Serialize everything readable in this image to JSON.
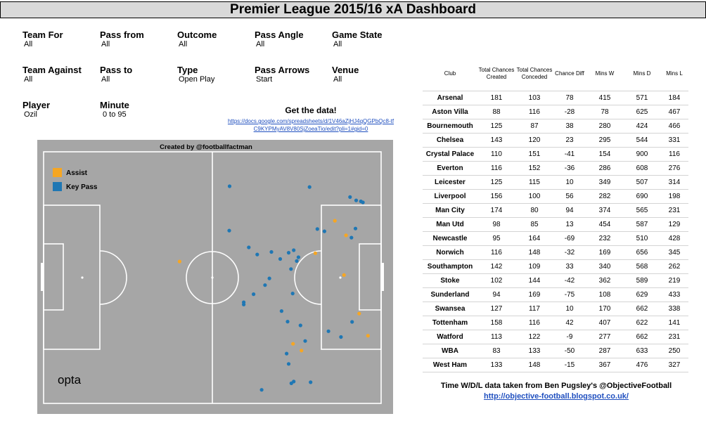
{
  "title": "Premier League 2015/16 xA Dashboard",
  "filters": [
    {
      "label": "Team For",
      "value": "All"
    },
    {
      "label": "Pass from",
      "value": "All"
    },
    {
      "label": "Outcome",
      "value": "All"
    },
    {
      "label": "Pass Angle",
      "value": "All"
    },
    {
      "label": "Game State",
      "value": "All"
    },
    {
      "label": "Team Against",
      "value": "All"
    },
    {
      "label": "Pass to",
      "value": "All"
    },
    {
      "label": "Type",
      "value": "Open Play"
    },
    {
      "label": "Pass Arrows",
      "value": "Start"
    },
    {
      "label": "Venue",
      "value": "All"
    },
    {
      "label": "Player",
      "value": "Ozil"
    },
    {
      "label": "Minute",
      "value": "0 to 95"
    }
  ],
  "getdata": {
    "heading": "Get the data!",
    "link": "https://docs.google.com/spreadsheets/d/1V46aZjHJ4qQGPbQc8-tfC9KYPMyAV8V80SjZoeaTio/edit?pli=1#gid=0"
  },
  "pitch": {
    "caption": "Created by @footballfactman",
    "brand": "opta",
    "legend": [
      {
        "label": "Assist",
        "color": "#f6a623"
      },
      {
        "label": "Key Pass",
        "color": "#1f77b4"
      }
    ],
    "colors": {
      "background": "#a6a6a6",
      "lines": "#ffffff"
    }
  },
  "chart_data": {
    "type": "scatter",
    "title": "Created by @footballfactman",
    "x_axis": "pitch length (0-100, left to right)",
    "y_axis": "pitch width (0-100, top to bottom)",
    "xlim": [
      0,
      100
    ],
    "ylim": [
      0,
      100
    ],
    "series": [
      {
        "name": "Assist",
        "color": "#f6a623",
        "points": [
          [
            40.3,
            43.6
          ],
          [
            86.3,
            27.4
          ],
          [
            89.6,
            33.2
          ],
          [
            80.5,
            40.3
          ],
          [
            89.0,
            49.0
          ],
          [
            93.5,
            64.3
          ],
          [
            96.1,
            73.1
          ],
          [
            73.9,
            76.3
          ],
          [
            76.4,
            79.0
          ]
        ]
      },
      {
        "name": "Key Pass",
        "color": "#1f77b4",
        "points": [
          [
            55.1,
            13.7
          ],
          [
            78.8,
            14.0
          ],
          [
            90.8,
            18.0
          ],
          [
            92.6,
            19.3
          ],
          [
            94.0,
            19.7
          ],
          [
            94.6,
            20.1
          ],
          [
            55.0,
            31.3
          ],
          [
            81.1,
            30.7
          ],
          [
            83.2,
            31.6
          ],
          [
            92.4,
            30.5
          ],
          [
            91.2,
            34.1
          ],
          [
            60.8,
            38.0
          ],
          [
            63.3,
            40.8
          ],
          [
            67.5,
            39.8
          ],
          [
            72.6,
            40.1
          ],
          [
            70.1,
            42.6
          ],
          [
            74.1,
            39.1
          ],
          [
            75.5,
            41.9
          ],
          [
            75.0,
            43.4
          ],
          [
            73.3,
            46.6
          ],
          [
            66.9,
            50.3
          ],
          [
            65.6,
            53.0
          ],
          [
            62.2,
            56.6
          ],
          [
            59.3,
            59.8
          ],
          [
            59.3,
            60.7
          ],
          [
            73.8,
            56.3
          ],
          [
            70.5,
            63.3
          ],
          [
            72.3,
            67.5
          ],
          [
            76.1,
            69.0
          ],
          [
            84.4,
            71.3
          ],
          [
            91.4,
            67.6
          ],
          [
            88.1,
            73.6
          ],
          [
            77.5,
            75.2
          ],
          [
            72.0,
            80.2
          ],
          [
            72.6,
            84.3
          ],
          [
            73.4,
            92.0
          ],
          [
            74.1,
            91.3
          ],
          [
            79.1,
            91.6
          ],
          [
            64.6,
            94.6
          ]
        ]
      }
    ]
  },
  "table": {
    "columns": [
      "Club",
      "Total Chances Created",
      "Total Chances Conceded",
      "Chance Diff",
      "Mins W",
      "Mins D",
      "Mins L"
    ],
    "rows": [
      [
        "Arsenal",
        "181",
        "103",
        "78",
        "415",
        "571",
        "184"
      ],
      [
        "Aston Villa",
        "88",
        "116",
        "-28",
        "78",
        "625",
        "467"
      ],
      [
        "Bournemouth",
        "125",
        "87",
        "38",
        "280",
        "424",
        "466"
      ],
      [
        "Chelsea",
        "143",
        "120",
        "23",
        "295",
        "544",
        "331"
      ],
      [
        "Crystal Palace",
        "110",
        "151",
        "-41",
        "154",
        "900",
        "116"
      ],
      [
        "Everton",
        "116",
        "152",
        "-36",
        "286",
        "608",
        "276"
      ],
      [
        "Leicester",
        "125",
        "115",
        "10",
        "349",
        "507",
        "314"
      ],
      [
        "Liverpool",
        "156",
        "100",
        "56",
        "282",
        "690",
        "198"
      ],
      [
        "Man City",
        "174",
        "80",
        "94",
        "374",
        "565",
        "231"
      ],
      [
        "Man Utd",
        "98",
        "85",
        "13",
        "454",
        "587",
        "129"
      ],
      [
        "Newcastle",
        "95",
        "164",
        "-69",
        "232",
        "510",
        "428"
      ],
      [
        "Norwich",
        "116",
        "148",
        "-32",
        "169",
        "656",
        "345"
      ],
      [
        "Southampton",
        "142",
        "109",
        "33",
        "340",
        "568",
        "262"
      ],
      [
        "Stoke",
        "102",
        "144",
        "-42",
        "362",
        "589",
        "219"
      ],
      [
        "Sunderland",
        "94",
        "169",
        "-75",
        "108",
        "629",
        "433"
      ],
      [
        "Swansea",
        "127",
        "117",
        "10",
        "170",
        "662",
        "338"
      ],
      [
        "Tottenham",
        "158",
        "116",
        "42",
        "407",
        "622",
        "141"
      ],
      [
        "Watford",
        "113",
        "122",
        "-9",
        "277",
        "662",
        "231"
      ],
      [
        "WBA",
        "83",
        "133",
        "-50",
        "287",
        "633",
        "250"
      ],
      [
        "West Ham",
        "133",
        "148",
        "-15",
        "367",
        "476",
        "327"
      ]
    ]
  },
  "credit": {
    "text": "Time W/D/L data taken from Ben Pugsley's @ObjectiveFootball",
    "link": "http://objective-football.blogspot.co.uk/"
  }
}
